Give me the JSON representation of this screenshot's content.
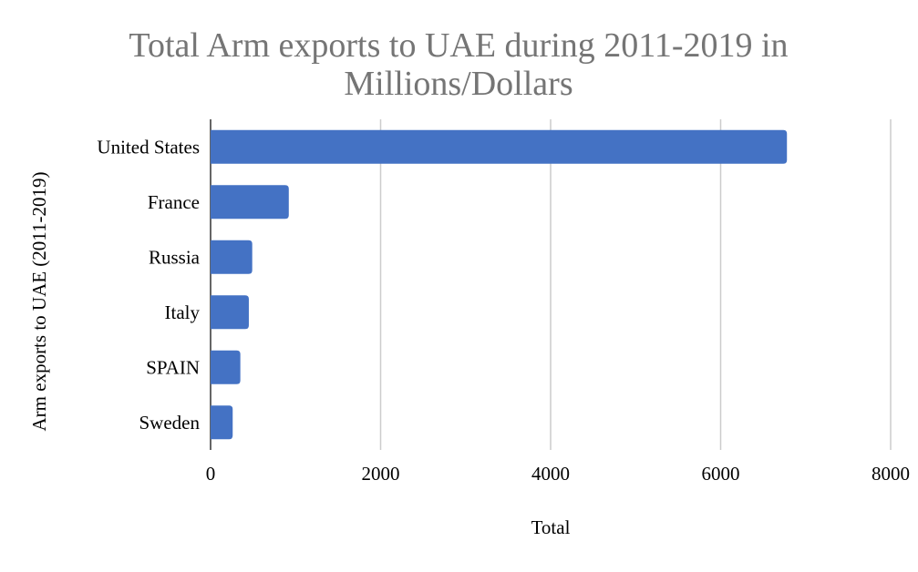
{
  "chart_data": {
    "type": "bar",
    "orientation": "horizontal",
    "title": "Total Arm exports to UAE during 2011-2019 in Millions/Dollars",
    "title_lines": [
      "Total Arm exports to UAE during 2011-2019 in",
      "Millions/Dollars"
    ],
    "categories": [
      "United States",
      "France",
      "Russia",
      "Italy",
      "SPAIN",
      "Sweden"
    ],
    "values": [
      6780,
      920,
      490,
      450,
      350,
      260
    ],
    "xlabel": "Total",
    "ylabel": "Arm exports to UAE (2011-2019)",
    "xlim": [
      0,
      8000
    ],
    "xticks": [
      0,
      2000,
      4000,
      6000,
      8000
    ],
    "grid": true,
    "legend": "none",
    "colors": {
      "bar": "#4472c4",
      "title": "#757575",
      "grid": "#cccccc"
    }
  }
}
